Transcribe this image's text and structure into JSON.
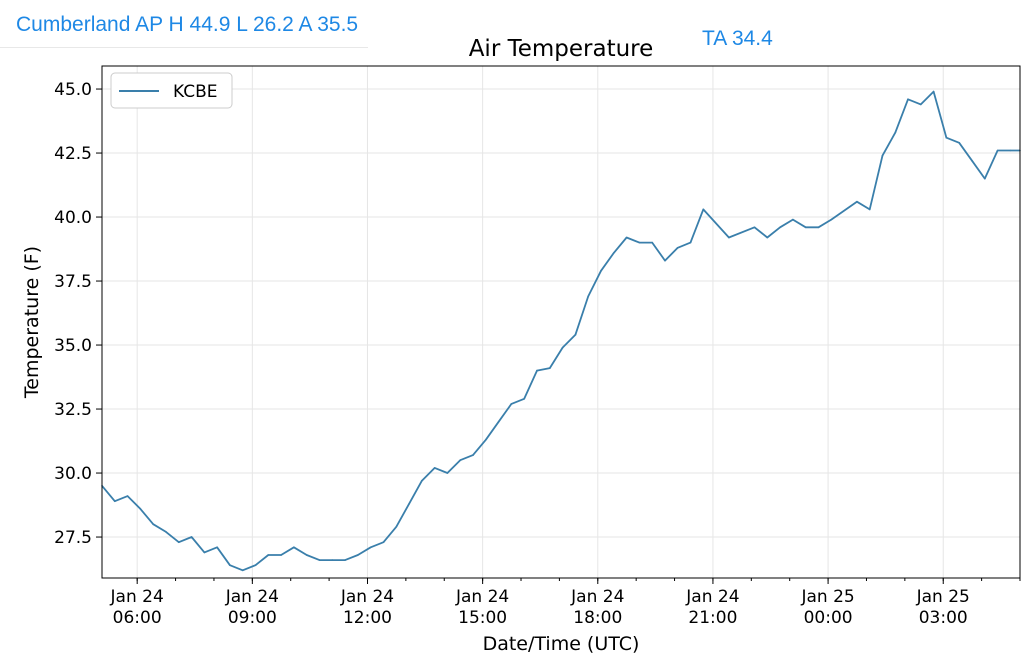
{
  "header": {
    "station_text": "Cumberland AP H 44.9 L 26.2 A 35.5",
    "ta_text": "TA 34.4"
  },
  "colors": {
    "header_text": "#1e88e5",
    "series_line": "#3a7fab",
    "grid": "#e6e6e6"
  },
  "chart_data": {
    "type": "line",
    "title": "Air Temperature",
    "xlabel": "Date/Time (UTC)",
    "ylabel": "Temperature (F)",
    "ylim": [
      25.9,
      45.9
    ],
    "xlim": [
      "2024-01-24T05:05",
      "2024-01-25T05:00"
    ],
    "grid": true,
    "legend": "top-left",
    "y_ticks": [
      27.5,
      30.0,
      32.5,
      35.0,
      37.5,
      40.0,
      42.5,
      45.0
    ],
    "x_ticks": [
      {
        "t": "2024-01-24T06:00",
        "date": "Jan 24",
        "time": "06:00"
      },
      {
        "t": "2024-01-24T09:00",
        "date": "Jan 24",
        "time": "09:00"
      },
      {
        "t": "2024-01-24T12:00",
        "date": "Jan 24",
        "time": "12:00"
      },
      {
        "t": "2024-01-24T15:00",
        "date": "Jan 24",
        "time": "15:00"
      },
      {
        "t": "2024-01-24T18:00",
        "date": "Jan 24",
        "time": "18:00"
      },
      {
        "t": "2024-01-24T21:00",
        "date": "Jan 24",
        "time": "21:00"
      },
      {
        "t": "2024-01-25T00:00",
        "date": "Jan 25",
        "time": "00:00"
      },
      {
        "t": "2024-01-25T03:00",
        "date": "Jan 25",
        "time": "03:00"
      }
    ],
    "series": [
      {
        "name": "KCBE",
        "x": [
          "2024-01-24T05:05",
          "2024-01-24T05:25",
          "2024-01-24T05:45",
          "2024-01-24T06:05",
          "2024-01-24T06:25",
          "2024-01-24T06:45",
          "2024-01-24T07:05",
          "2024-01-24T07:25",
          "2024-01-24T07:45",
          "2024-01-24T08:05",
          "2024-01-24T08:25",
          "2024-01-24T08:45",
          "2024-01-24T09:05",
          "2024-01-24T09:25",
          "2024-01-24T09:45",
          "2024-01-24T10:05",
          "2024-01-24T10:25",
          "2024-01-24T10:45",
          "2024-01-24T11:05",
          "2024-01-24T11:25",
          "2024-01-24T11:45",
          "2024-01-24T12:05",
          "2024-01-24T12:25",
          "2024-01-24T12:45",
          "2024-01-24T13:05",
          "2024-01-24T13:25",
          "2024-01-24T13:45",
          "2024-01-24T14:05",
          "2024-01-24T14:25",
          "2024-01-24T14:45",
          "2024-01-24T15:05",
          "2024-01-24T15:25",
          "2024-01-24T15:45",
          "2024-01-24T16:05",
          "2024-01-24T16:25",
          "2024-01-24T16:45",
          "2024-01-24T17:05",
          "2024-01-24T17:25",
          "2024-01-24T17:45",
          "2024-01-24T18:05",
          "2024-01-24T18:25",
          "2024-01-24T18:45",
          "2024-01-24T19:05",
          "2024-01-24T19:25",
          "2024-01-24T19:45",
          "2024-01-24T20:05",
          "2024-01-24T20:25",
          "2024-01-24T20:45",
          "2024-01-24T21:25",
          "2024-01-24T22:05",
          "2024-01-24T22:25",
          "2024-01-24T22:45",
          "2024-01-24T23:05",
          "2024-01-24T23:25",
          "2024-01-24T23:45",
          "2024-01-25T00:05",
          "2024-01-25T00:45",
          "2024-01-25T01:05",
          "2024-01-25T01:25",
          "2024-01-25T01:45",
          "2024-01-25T02:05",
          "2024-01-25T02:25",
          "2024-01-25T02:45",
          "2024-01-25T03:05",
          "2024-01-25T03:25",
          "2024-01-25T03:45",
          "2024-01-25T04:05",
          "2024-01-25T04:25",
          "2024-01-25T04:45",
          "2024-01-25T05:00"
        ],
        "values": [
          29.5,
          28.9,
          29.1,
          28.6,
          28.0,
          27.7,
          27.3,
          27.5,
          26.9,
          27.1,
          26.4,
          26.2,
          26.4,
          26.8,
          26.8,
          27.1,
          26.8,
          26.6,
          26.6,
          26.6,
          26.8,
          27.1,
          27.3,
          27.9,
          28.8,
          29.7,
          30.2,
          30.0,
          30.5,
          30.7,
          31.3,
          32.0,
          32.7,
          32.9,
          34.0,
          34.1,
          34.9,
          35.4,
          36.9,
          37.9,
          38.6,
          39.2,
          39.0,
          39.0,
          38.3,
          38.8,
          39.0,
          40.3,
          39.2,
          39.6,
          39.2,
          39.6,
          39.9,
          39.6,
          39.6,
          39.9,
          40.6,
          40.3,
          42.4,
          43.3,
          44.6,
          44.4,
          44.9,
          43.1,
          42.9,
          42.2,
          41.5,
          42.6,
          42.6,
          42.6
        ]
      }
    ]
  }
}
